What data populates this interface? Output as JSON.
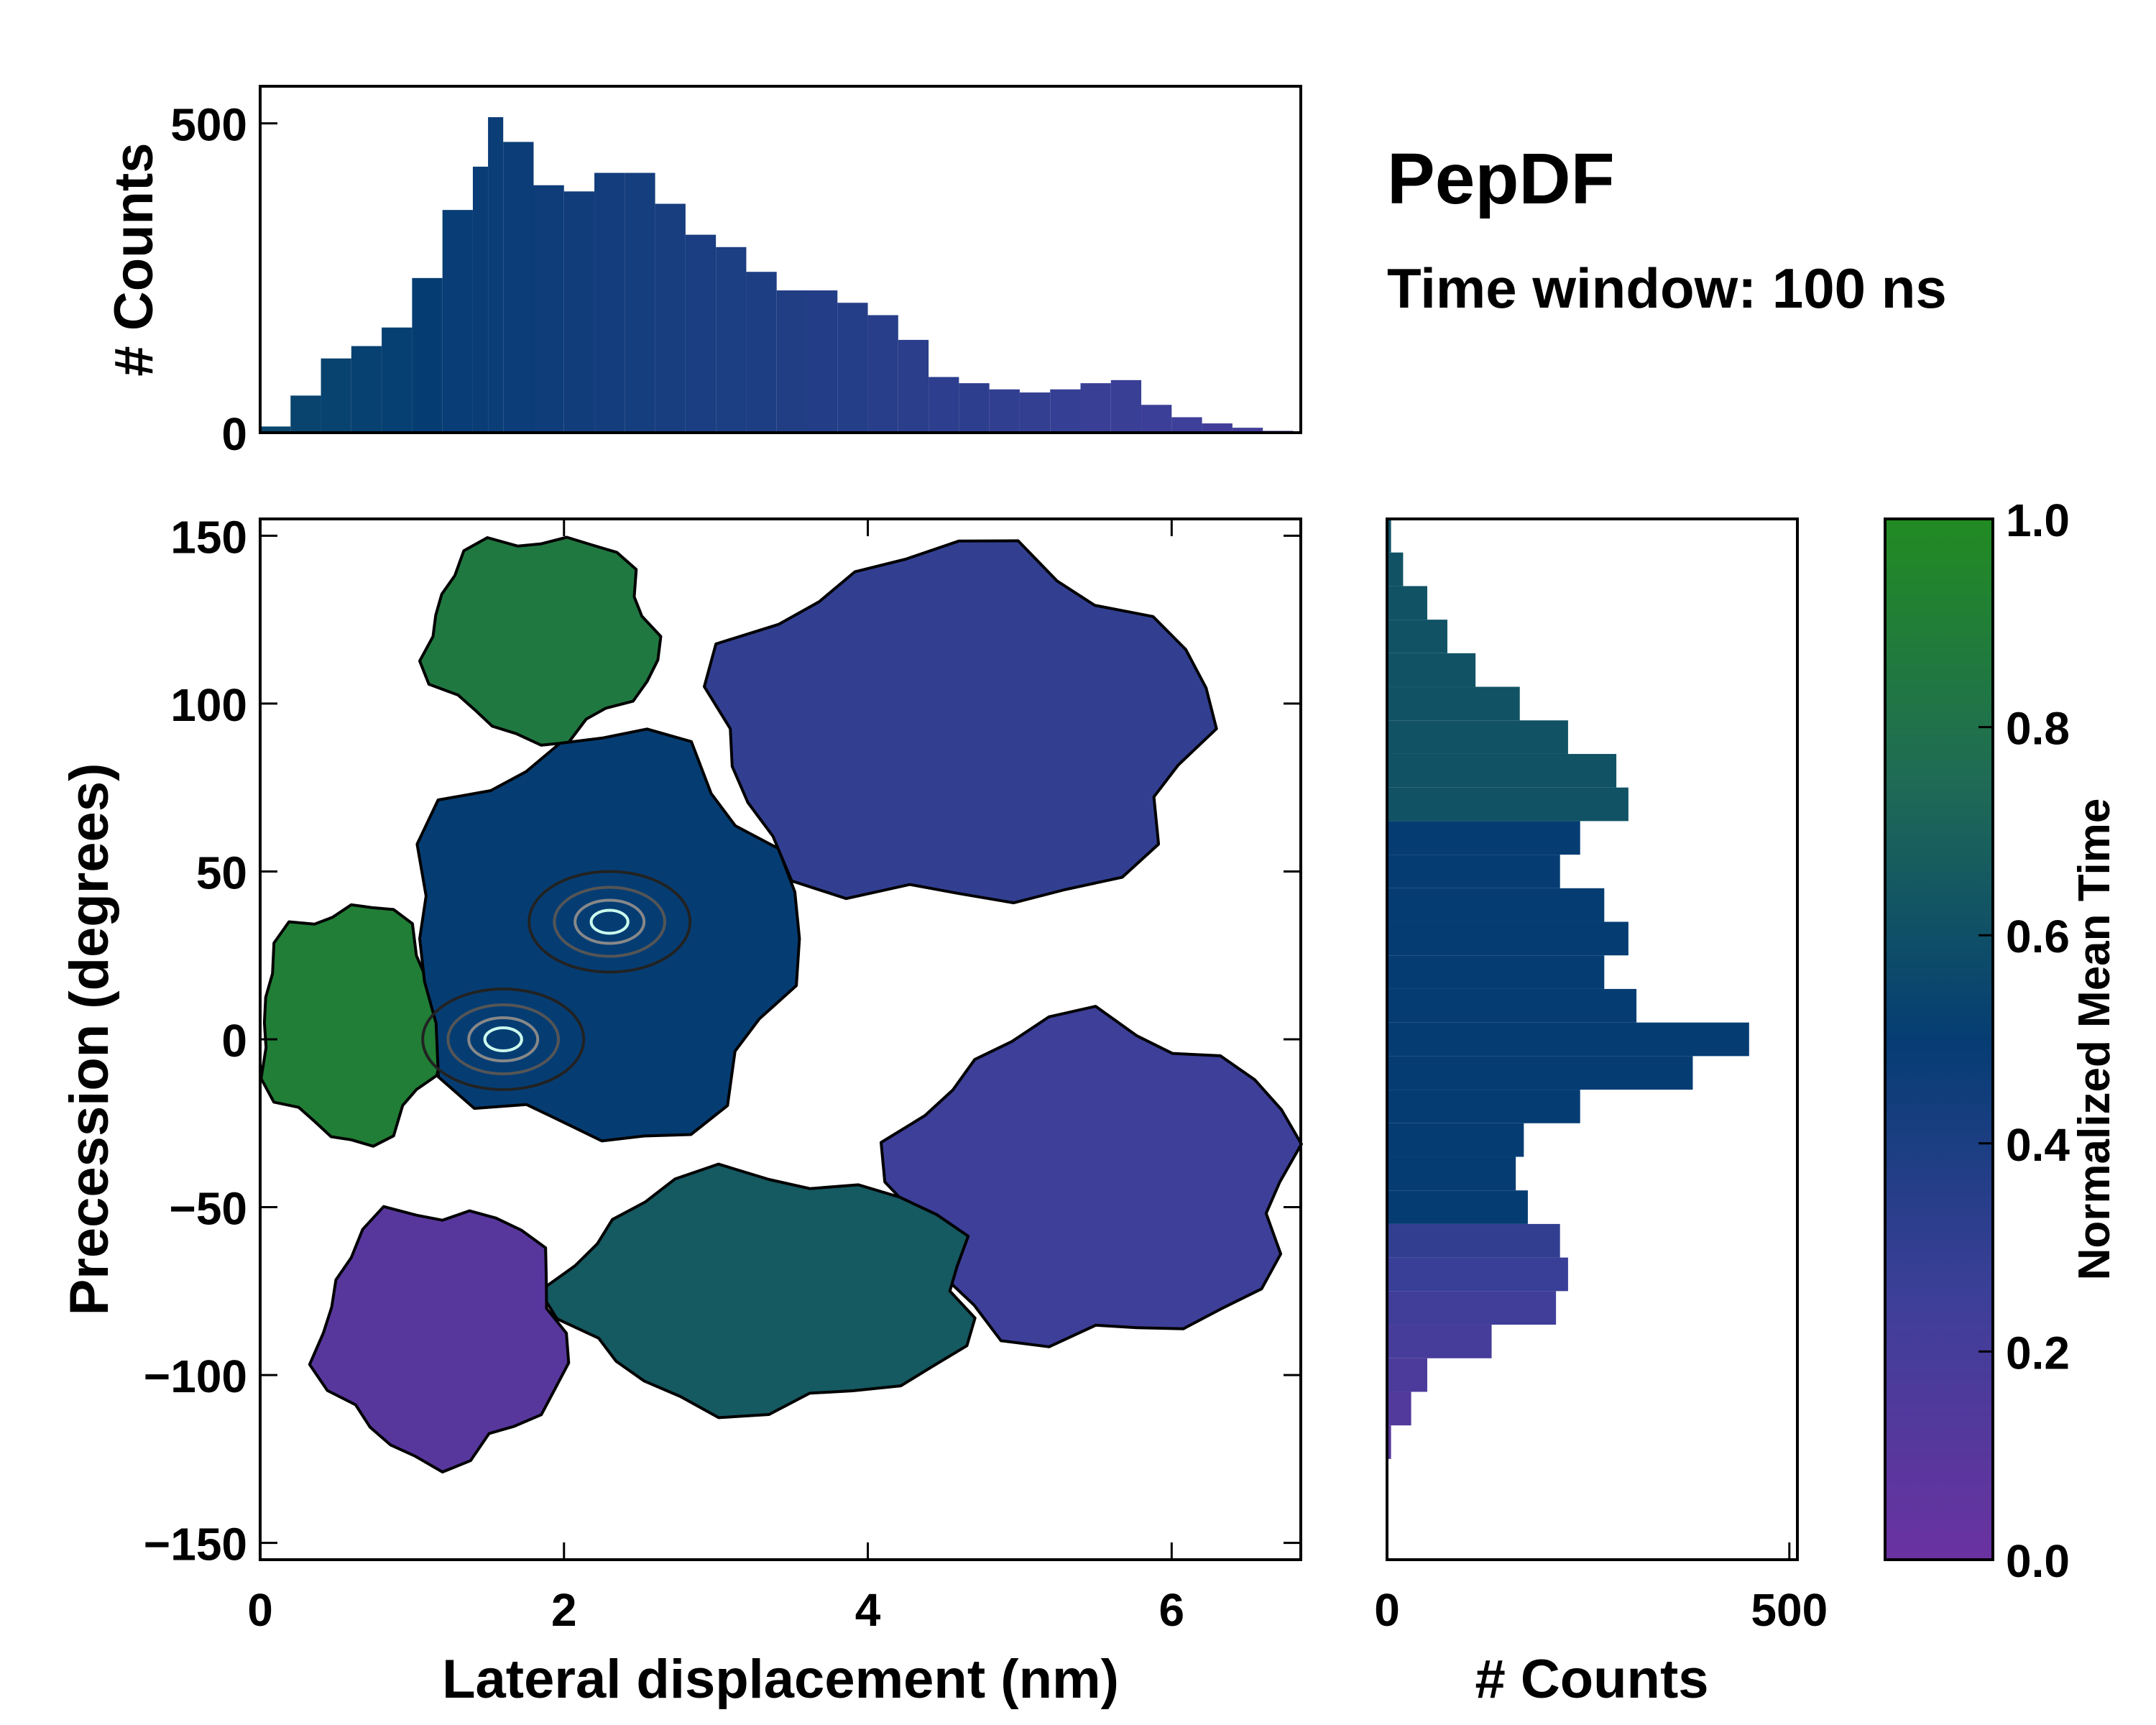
{
  "title": "PepDF",
  "subtitle": "Time window: 100 ns",
  "chart_data": [
    {
      "type": "heatmap",
      "panel": "main-2d-histogram",
      "xlabel": "Lateral displacement (nm)",
      "ylabel": "Precession (degrees)",
      "xlim": [
        0,
        6.85
      ],
      "ylim": [
        -155,
        155
      ],
      "x_ticks": [
        0,
        2,
        4,
        6
      ],
      "x_tick_labels": [
        "0",
        "2",
        "4",
        "6"
      ],
      "y_ticks": [
        -150,
        -100,
        -50,
        0,
        50,
        100,
        150
      ],
      "y_tick_labels": [
        "−150",
        "−100",
        "−50",
        "0",
        "50",
        "100",
        "150"
      ],
      "color_metric": "Normalized Mean Time",
      "regions": [
        {
          "name": "upper-left green lobe",
          "x": [
            1.1,
            2.6
          ],
          "y": [
            90,
            150
          ],
          "value": 0.85
        },
        {
          "name": "left green band",
          "x": [
            0,
            1.2
          ],
          "y": [
            -30,
            40
          ],
          "value": 0.9
        },
        {
          "name": "central blue core",
          "x": [
            1.0,
            3.5
          ],
          "y": [
            -30,
            90
          ],
          "value": 0.5
        },
        {
          "name": "upper-right blue lobe",
          "x": [
            3.0,
            6.2
          ],
          "y": [
            40,
            145
          ],
          "value": 0.3
        },
        {
          "name": "right blue lobe",
          "x": [
            4.2,
            6.8
          ],
          "y": [
            -90,
            5
          ],
          "value": 0.25
        },
        {
          "name": "lower teal lobe",
          "x": [
            2.0,
            4.7
          ],
          "y": [
            -110,
            -40
          ],
          "value": 0.65
        },
        {
          "name": "lower-left purple lobe",
          "x": [
            0.4,
            2.0
          ],
          "y": [
            -125,
            -50
          ],
          "value": 0.1
        }
      ],
      "density_peaks": [
        {
          "x": 1.6,
          "y": 0,
          "label": "highest density"
        },
        {
          "x": 2.3,
          "y": 35,
          "label": "second density peak"
        }
      ]
    },
    {
      "type": "bar",
      "panel": "top-marginal",
      "xlabel": "",
      "ylabel": "# Counts",
      "xlim": [
        0,
        6.85
      ],
      "ylim": [
        0,
        560
      ],
      "y_ticks": [
        0,
        500
      ],
      "y_tick_labels": [
        "0",
        "500"
      ],
      "x": [
        0.0,
        0.2,
        0.4,
        0.6,
        0.8,
        1.0,
        1.2,
        1.4,
        1.5,
        1.6,
        1.8,
        2.0,
        2.2,
        2.4,
        2.6,
        2.8,
        3.0,
        3.2,
        3.4,
        3.6,
        3.8,
        4.0,
        4.2,
        4.4,
        4.6,
        4.8,
        5.0,
        5.2,
        5.4,
        5.6,
        5.8,
        6.0,
        6.2,
        6.4,
        6.6,
        6.8
      ],
      "values": [
        10,
        60,
        120,
        140,
        170,
        250,
        360,
        430,
        510,
        470,
        400,
        390,
        420,
        420,
        370,
        320,
        300,
        260,
        230,
        230,
        210,
        190,
        150,
        90,
        80,
        70,
        65,
        70,
        80,
        85,
        45,
        25,
        15,
        8,
        3,
        0
      ]
    },
    {
      "type": "bar",
      "panel": "right-marginal",
      "orientation": "horizontal",
      "xlabel": "# Counts",
      "ylabel": "",
      "xlim": [
        0,
        510
      ],
      "ylim": [
        -155,
        155
      ],
      "x_ticks": [
        0,
        500
      ],
      "x_tick_labels": [
        "0",
        "500"
      ],
      "y": [
        150,
        140,
        130,
        120,
        110,
        100,
        90,
        80,
        70,
        60,
        50,
        40,
        30,
        20,
        10,
        0,
        -10,
        -20,
        -30,
        -40,
        -50,
        -60,
        -70,
        -80,
        -90,
        -100,
        -110,
        -120
      ],
      "values": [
        5,
        20,
        50,
        75,
        110,
        165,
        225,
        285,
        300,
        240,
        215,
        270,
        300,
        270,
        310,
        450,
        380,
        240,
        170,
        160,
        175,
        215,
        225,
        210,
        130,
        50,
        30,
        5
      ]
    },
    {
      "type": "colorbar",
      "panel": "colorbar",
      "label": "Normalized Mean Time",
      "range": [
        0.0,
        1.0
      ],
      "ticks": [
        0.0,
        0.2,
        0.4,
        0.6,
        0.8,
        1.0
      ],
      "tick_labels": [
        "0.0",
        "0.2",
        "0.4",
        "0.6",
        "0.8",
        "1.0"
      ],
      "colormap": [
        "#6a32a0",
        "#3d3f98",
        "#053d73",
        "#1f6b55",
        "#228b22"
      ]
    }
  ]
}
